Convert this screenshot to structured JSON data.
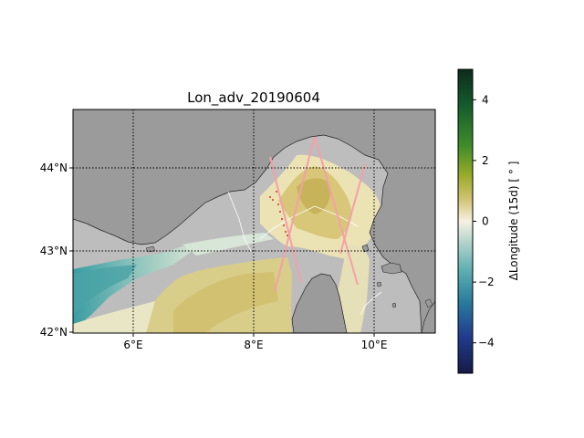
{
  "title": "Lon_adv_20190604",
  "map": {
    "lon_range": [
      5,
      11
    ],
    "lat_range": [
      42,
      44.7
    ],
    "x_ticks": [
      {
        "value": 6,
        "label": "6°E"
      },
      {
        "value": 8,
        "label": "8°E"
      },
      {
        "value": 10,
        "label": "10°E"
      }
    ],
    "y_ticks": [
      {
        "value": 42,
        "label": "42°N"
      },
      {
        "value": 43,
        "label": "43°N"
      },
      {
        "value": 44,
        "label": "44°N"
      }
    ],
    "land_color": "#9b9b9b",
    "nodata_color": "#bdbdbd",
    "track_color": "#f4a0a8",
    "gridlines": "dotted"
  },
  "colorbar": {
    "label": "ΔLongitude (15d) [ ° ]",
    "range": [
      -5,
      5
    ],
    "ticks": [
      {
        "value": 4,
        "label": "4"
      },
      {
        "value": 2,
        "label": "2"
      },
      {
        "value": 0,
        "label": "0"
      },
      {
        "value": -2,
        "label": "−2"
      },
      {
        "value": -4,
        "label": "−4"
      }
    ],
    "colormap": "gist_earth_r"
  }
}
